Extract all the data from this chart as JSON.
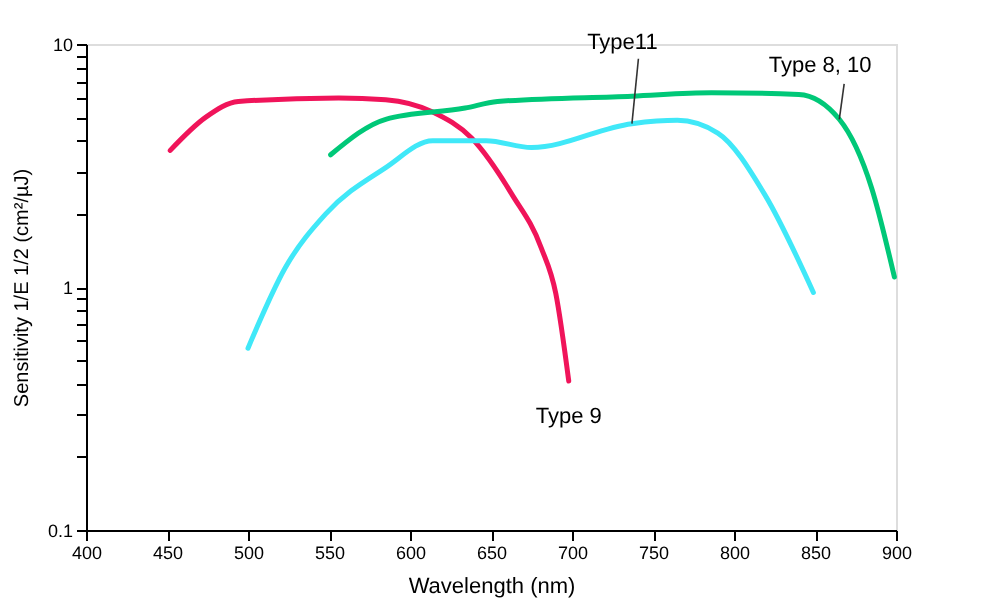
{
  "chart_data": {
    "type": "line",
    "xlabel": "Wavelength (nm)",
    "ylabel": "Sensitivity 1/E 1/2 (cm²/µJ)",
    "log": "y",
    "xlim": [
      400,
      900
    ],
    "xticks": [
      400,
      450,
      500,
      550,
      600,
      650,
      700,
      750,
      800,
      850,
      900
    ],
    "ylim": [
      0.1,
      10
    ],
    "yticks": [
      0.1,
      {
        "value": 0.2,
        "label": null
      },
      {
        "value": 0.3,
        "label": null
      },
      {
        "value": 0.4,
        "label": null
      },
      {
        "value": 0.5,
        "label": null
      },
      {
        "value": 0.6,
        "label": null
      },
      {
        "value": 0.7,
        "label": null
      },
      {
        "value": 0.8,
        "label": null
      },
      {
        "value": 0.9,
        "label": null
      },
      1,
      {
        "value": 2,
        "label": null
      },
      {
        "value": 3,
        "label": null
      },
      {
        "value": 4,
        "label": null
      },
      {
        "value": 5,
        "label": null
      },
      {
        "value": 6,
        "label": null
      },
      {
        "value": 7,
        "label": null
      },
      {
        "value": 8,
        "label": null
      },
      {
        "value": 9,
        "label": null
      },
      10
    ],
    "grid": false,
    "marker": "none",
    "line_style": "solid",
    "series": [
      {
        "color": "#f0145a",
        "x": [
          452,
          474,
          494,
          556,
          585,
          614,
          638,
          663,
          681,
          690,
          698
        ],
        "values": [
          3.65,
          5.0,
          5.8,
          6.0,
          5.9,
          5.25,
          4.1,
          2.4,
          1.45,
          0.94,
          0.41
        ]
      },
      {
        "color": "#00c878",
        "x": [
          551,
          585,
          634,
          654,
          737,
          786,
          840,
          865,
          885,
          899
        ],
        "values": [
          3.5,
          4.9,
          5.45,
          5.8,
          6.1,
          6.3,
          6.2,
          4.9,
          2.55,
          1.1
        ]
      },
      {
        "color": "#40e8f8",
        "x": [
          500,
          523,
          548,
          585,
          614,
          647,
          675,
          737,
          765,
          790,
          819,
          849
        ],
        "values": [
          0.56,
          1.2,
          2.0,
          3.1,
          4.0,
          4.0,
          3.75,
          4.7,
          4.85,
          4.3,
          2.4,
          0.95
        ]
      }
    ],
    "annotations": [
      {
        "text": "Type 9",
        "x": 698,
        "y": 0.41
      },
      {
        "text": "Type11",
        "x": 737,
        "y": 4.7
      },
      {
        "text": "Type 8, 10",
        "x": 865,
        "y": 4.9
      }
    ]
  }
}
